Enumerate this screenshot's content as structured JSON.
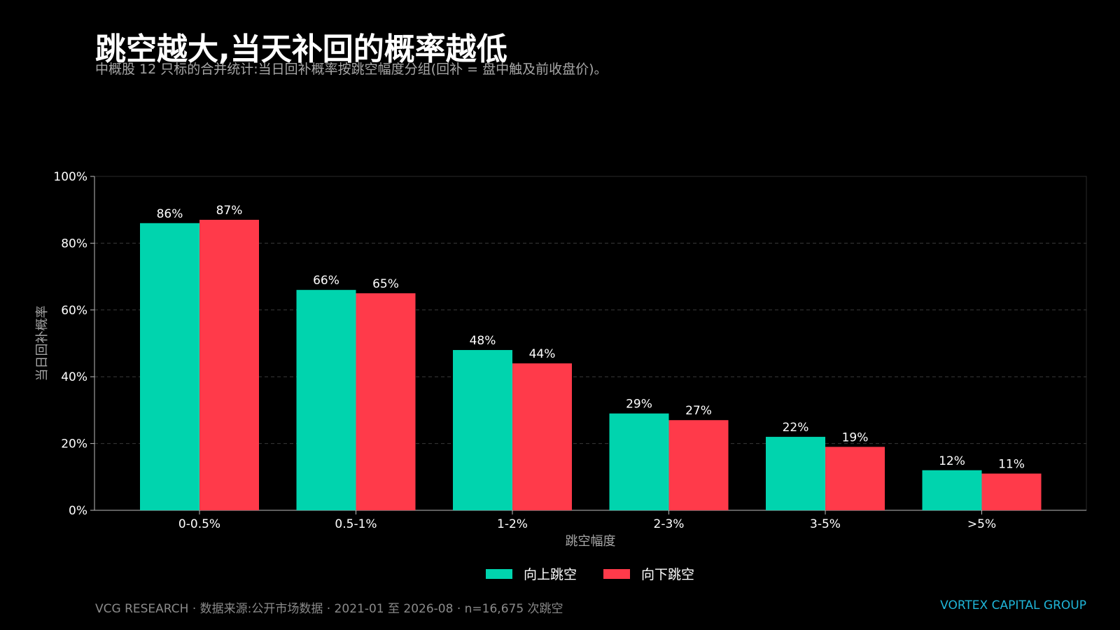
{
  "header": {
    "title": "跳空越大,当天补回的概率越低",
    "subtitle": "中概股 12 只标的合并统计:当日回补概率按跳空幅度分组(回补 = 盘中触及前收盘价)。"
  },
  "chart_data": {
    "type": "bar",
    "categories": [
      "0-0.5%",
      "0.5-1%",
      "1-2%",
      "2-3%",
      "3-5%",
      ">5%"
    ],
    "series": [
      {
        "name": "向上跳空",
        "values": [
          86,
          66,
          48,
          29,
          22,
          12
        ],
        "color": "#00d4ae"
      },
      {
        "name": "向下跳空",
        "values": [
          87,
          65,
          44,
          27,
          19,
          11
        ],
        "color": "#ff3a4a"
      }
    ],
    "xlabel": "跳空幅度",
    "ylabel": "当日回补概率",
    "ylim": [
      0,
      100
    ],
    "yticks": [
      "0%",
      "20%",
      "40%",
      "60%",
      "80%",
      "100%"
    ],
    "value_suffix": "%",
    "grid": true,
    "legend": "bottom-center"
  },
  "legend": {
    "up_label": "向上跳空",
    "down_label": "向下跳空"
  },
  "footer": {
    "left": "VCG RESEARCH  ·  数据来源:公开市场数据  ·  2021-01 至 2026-08  ·  n=16,675 次跳空",
    "right": "VORTEX CAPITAL GROUP"
  },
  "colors": {
    "background": "#000000",
    "up": "#00d4ae",
    "down": "#ff3a4a",
    "accent": "#1fb6d9"
  }
}
